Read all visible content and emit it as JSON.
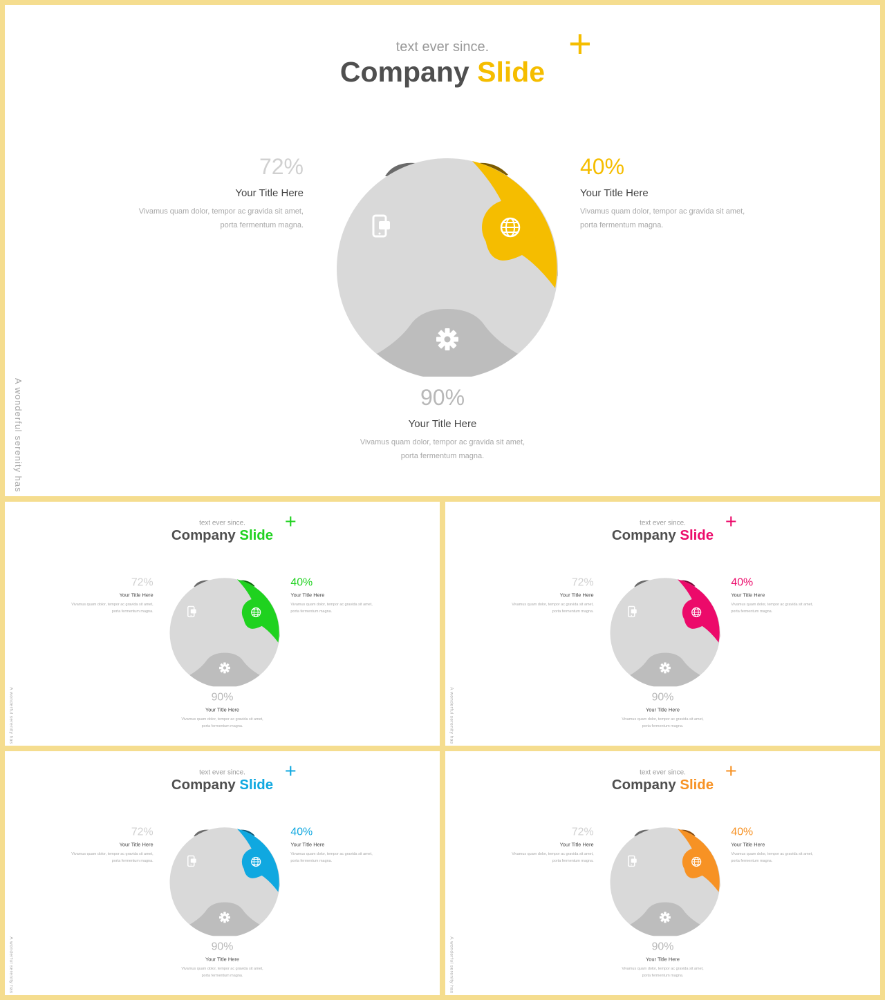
{
  "common": {
    "subtitle": "text ever since.",
    "title_main": "Company",
    "title_accent": "Slide",
    "plus": "+",
    "side_text": "A wonderful serenity has",
    "stat_left": {
      "pct": "72%",
      "title": "Your Title Here",
      "desc_line1": "Vivamus quam dolor, tempor ac gravida sit amet,",
      "desc_line2": "porta fermentum magna."
    },
    "stat_right": {
      "pct": "40%",
      "title": "Your Title Here",
      "desc_line1": "Vivamus quam dolor, tempor ac gravida sit amet,",
      "desc_line2": "porta fermentum magna."
    },
    "stat_bottom": {
      "pct": "90%",
      "title": "Your Title Here",
      "desc_line1": "Vivamus quam dolor, tempor ac gravida sit amet,",
      "desc_line2": "porta fermentum magna."
    }
  },
  "icons": {
    "left": "mobile-phone-icon",
    "right": "globe-icon",
    "bottom": "gear-icon"
  },
  "slides": [
    {
      "accent": "#f5bd00",
      "accent_dark": "#7a5a00"
    },
    {
      "accent": "#1fd21f",
      "accent_dark": "#0a6a0a"
    },
    {
      "accent": "#ec0a6a",
      "accent_dark": "#7a0535"
    },
    {
      "accent": "#10a8e0",
      "accent_dark": "#0a5a7a"
    },
    {
      "accent": "#f79224",
      "accent_dark": "#8a4a0a"
    }
  ]
}
